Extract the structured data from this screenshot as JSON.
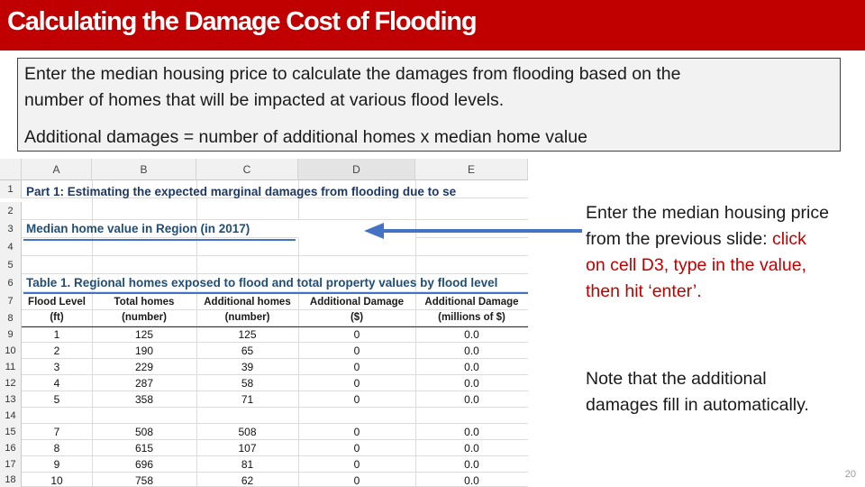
{
  "slide": {
    "title": "Calculating the Damage Cost of Flooding",
    "page_number": "20",
    "colors": {
      "banner": "#c00000",
      "accent_text": "#c00000",
      "arrow": "#4472c4",
      "sheet_heading": "#1f4e79"
    }
  },
  "infobox": {
    "line1": "Enter the median housing price to calculate the damages from flooding  based on the",
    "line2": "number of homes that will be impacted at various flood levels.",
    "formula": "Additional damages =  number of additional homes x median home value"
  },
  "sheet": {
    "columns": [
      "A",
      "B",
      "C",
      "D",
      "E"
    ],
    "row_numbers": [
      "1",
      "2",
      "3",
      "4",
      "5",
      "6",
      "7",
      "8",
      "9",
      "10",
      "11",
      "12",
      "13",
      "14",
      "15",
      "16",
      "17",
      "18"
    ],
    "part_title": "Part 1: Estimating the expected marginal damages from flooding due to se",
    "median_label": "Median home value in Region  (in 2017)",
    "table_title": "Table 1. Regional homes exposed to flood and total property values by flood level",
    "headers_top": [
      "Flood Level",
      "Total homes",
      "Additional homes",
      "Additional Damage",
      "Additional Damage"
    ],
    "headers_bottom": [
      "(ft)",
      "(number)",
      "(number)",
      "($)",
      "(millions of $)"
    ],
    "rows": [
      {
        "flood": "1",
        "total": "125",
        "additional": "125",
        "damage": "0",
        "millions": "0.0"
      },
      {
        "flood": "2",
        "total": "190",
        "additional": "65",
        "damage": "0",
        "millions": "0.0"
      },
      {
        "flood": "3",
        "total": "229",
        "additional": "39",
        "damage": "0",
        "millions": "0.0"
      },
      {
        "flood": "4",
        "total": "287",
        "additional": "58",
        "damage": "0",
        "millions": "0.0"
      },
      {
        "flood": "5",
        "total": "358",
        "additional": "71",
        "damage": "0",
        "millions": "0.0"
      },
      {
        "flood": "",
        "total": "",
        "additional": "",
        "damage": "",
        "millions": ""
      },
      {
        "flood": "7",
        "total": "508",
        "additional": "508",
        "damage": "0",
        "millions": "0.0"
      },
      {
        "flood": "8",
        "total": "615",
        "additional": "107",
        "damage": "0",
        "millions": "0.0"
      },
      {
        "flood": "9",
        "total": "696",
        "additional": "81",
        "damage": "0",
        "millions": "0.0"
      },
      {
        "flood": "10",
        "total": "758",
        "additional": "62",
        "damage": "0",
        "millions": "0.0"
      }
    ]
  },
  "instructions": {
    "step_plain": "Enter the median housing price from the previous slide:",
    "step_red": "click on cell D3, type in the value, then hit ‘enter’.",
    "note": "Note that the additional damages fill in automatically."
  },
  "arrow": {
    "icon": "left-arrow-icon"
  }
}
